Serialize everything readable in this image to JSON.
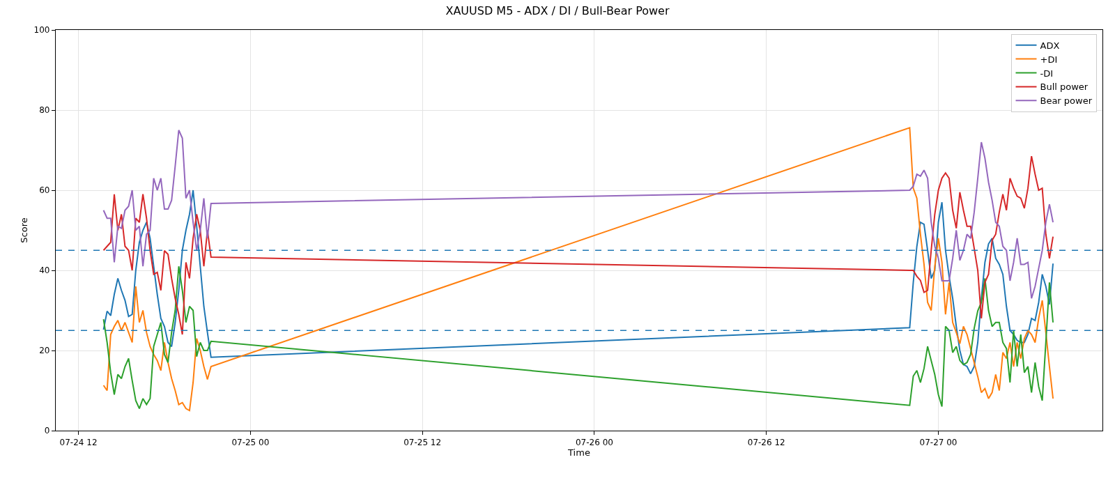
{
  "chart_data": {
    "type": "line",
    "title": "XAUUSD M5 - ADX / DI / Bull-Bear Power",
    "xlabel": "Time",
    "ylabel": "Score",
    "x": [
      "--07-24T13:45",
      "--07-24T14:00",
      "--07-24T14:15",
      "--07-24T14:30",
      "--07-24T14:45",
      "--07-24T15:00",
      "--07-24T15:15",
      "--07-24T15:30",
      "--07-24T15:45",
      "--07-24T16:00",
      "--07-24T16:15",
      "--07-24T16:30",
      "--07-24T16:45",
      "--07-24T17:00",
      "--07-24T17:15",
      "--07-24T17:30",
      "--07-24T17:45",
      "--07-24T18:00",
      "--07-24T18:15",
      "--07-24T18:30",
      "--07-24T18:45",
      "--07-24T19:00",
      "--07-24T19:15",
      "--07-24T19:30",
      "--07-24T19:45",
      "--07-24T20:00",
      "--07-24T20:15",
      "--07-24T20:30",
      "--07-24T20:45",
      "--07-24T21:00",
      "--07-24T21:15",
      "--07-26T22:00",
      "--07-26T22:15",
      "--07-26T22:30",
      "--07-26T22:45",
      "--07-26T23:00",
      "--07-26T23:15",
      "--07-26T23:30",
      "--07-26T23:45",
      "--07-27T00:00",
      "--07-27T00:15",
      "--07-27T00:30",
      "--07-27T00:45",
      "--07-27T01:00",
      "--07-27T01:15",
      "--07-27T01:30",
      "--07-27T01:45",
      "--07-27T02:00",
      "--07-27T02:15",
      "--07-27T02:30",
      "--07-27T02:45",
      "--07-27T03:00",
      "--07-27T03:15",
      "--07-27T03:30",
      "--07-27T03:45",
      "--07-27T04:00",
      "--07-27T04:15",
      "--07-27T04:30",
      "--07-27T04:45",
      "--07-27T05:00",
      "--07-27T05:15",
      "--07-27T05:30",
      "--07-27T05:45",
      "--07-27T06:00",
      "--07-27T06:15",
      "--07-27T06:30",
      "--07-27T06:45",
      "--07-27T07:00",
      "--07-27T07:15",
      "--07-27T07:30",
      "--07-27T07:45",
      "--07-27T08:00"
    ],
    "series": [
      {
        "name": "ADX",
        "color": "#1f77b4",
        "values": [
          25.2,
          29.8,
          28.7,
          34,
          38,
          35,
          32.5,
          28.5,
          29,
          40,
          47,
          50,
          52,
          48,
          41,
          34,
          28,
          26,
          22,
          21,
          27,
          35,
          45,
          50,
          54,
          60,
          51,
          41,
          31,
          24.5,
          18.3,
          25.7,
          37,
          46,
          52,
          51.5,
          45,
          38,
          40,
          52,
          57,
          45,
          38.5,
          33,
          26,
          20,
          16.5,
          16,
          14.2,
          16,
          22,
          33,
          42,
          46.6,
          48,
          43,
          41.5,
          39,
          31,
          25,
          24,
          22.5,
          22,
          22,
          24,
          28,
          27.5,
          32,
          39,
          36,
          31.5,
          41.7
        ]
      },
      {
        "name": "+DI",
        "color": "#ff7f0e",
        "values": [
          11.3,
          10,
          24,
          26,
          27.5,
          25,
          27,
          24.5,
          22,
          36,
          27,
          30,
          24.5,
          21,
          19,
          17.5,
          15,
          22,
          17,
          13,
          10,
          6.5,
          7,
          5.5,
          5,
          12,
          23,
          20,
          16,
          12.8,
          16,
          75.6,
          60.5,
          58,
          49,
          41.5,
          32,
          30,
          41,
          48,
          42,
          29,
          37,
          27,
          24.5,
          21.7,
          26,
          24,
          20.5,
          17,
          13.5,
          9.5,
          10.5,
          8,
          9.5,
          14,
          10,
          19.5,
          18,
          22,
          16,
          22,
          18,
          23,
          25,
          24,
          22,
          28,
          32.5,
          24.5,
          16,
          8
        ]
      },
      {
        "name": "-DI",
        "color": "#2ca02c",
        "values": [
          27.8,
          22,
          14.5,
          9,
          14,
          13,
          16,
          18,
          12.5,
          7.5,
          5.5,
          8,
          6.5,
          8,
          21,
          24,
          27,
          19,
          17,
          24.5,
          30,
          41,
          35,
          27,
          31,
          30,
          18.5,
          22,
          20,
          20,
          22.3,
          6.3,
          13.6,
          15,
          12,
          15.5,
          21,
          17.5,
          14,
          9,
          6,
          26,
          25,
          19.5,
          21,
          17.5,
          16.5,
          17,
          19,
          25.5,
          29.9,
          32,
          38,
          30,
          26,
          27,
          27,
          22,
          20.5,
          12,
          25,
          16,
          24,
          14.5,
          16,
          9.5,
          17,
          11,
          7.5,
          22,
          37,
          27
        ]
      },
      {
        "name": "Bull power",
        "color": "#d62728",
        "values": [
          45,
          46,
          47,
          59,
          50,
          54,
          46,
          45,
          40,
          53,
          52,
          59,
          53,
          45,
          39,
          39.5,
          35,
          44.9,
          44,
          38,
          33,
          29,
          24,
          42,
          38,
          48,
          54,
          50,
          41,
          50,
          43.3,
          40,
          40,
          38.5,
          37.5,
          34.5,
          35,
          45,
          54,
          60,
          63,
          64.3,
          63,
          55,
          50.5,
          59.5,
          55,
          51,
          51,
          45.5,
          40,
          28,
          37,
          39,
          47.5,
          49,
          54.5,
          59,
          55,
          63,
          60.5,
          58.5,
          58,
          55.5,
          60.5,
          68.5,
          64,
          60,
          60.5,
          49,
          43,
          48.4
        ]
      },
      {
        "name": "Bear power",
        "color": "#9467bd",
        "values": [
          55,
          53,
          53,
          42,
          51,
          50.5,
          55,
          56,
          60,
          50,
          51,
          41,
          49,
          50,
          63,
          60,
          63,
          55.3,
          55.3,
          57.5,
          66,
          75,
          73,
          58,
          60,
          52,
          45,
          50,
          58,
          48,
          56.7,
          60,
          61,
          64,
          63.5,
          65,
          63,
          52,
          46,
          43,
          37.4,
          37.4,
          37.4,
          43,
          50,
          42.5,
          45,
          49,
          48,
          54.5,
          63,
          72,
          68,
          62,
          57.5,
          52,
          51,
          46,
          45,
          37.4,
          42,
          48,
          41.5,
          41.5,
          42,
          33,
          36,
          40.5,
          45,
          52,
          56.5,
          52
        ]
      }
    ],
    "xlim": [
      "--07-24T10:25",
      "--07-27T11:27"
    ],
    "xticks": [
      {
        "value": "--07-24T12:00",
        "label": "07-24 12"
      },
      {
        "value": "--07-25T00:00",
        "label": "07-25 00"
      },
      {
        "value": "--07-25T12:00",
        "label": "07-25 12"
      },
      {
        "value": "--07-26T00:00",
        "label": "07-26 00"
      },
      {
        "value": "--07-26T12:00",
        "label": "07-26 12"
      },
      {
        "value": "--07-27T00:00",
        "label": "07-27 00"
      }
    ],
    "ylim": [
      0,
      100
    ],
    "yticks": [
      0,
      20,
      40,
      60,
      80,
      100
    ],
    "ref_lines": [
      {
        "axis": "y",
        "value": 45,
        "color": "#1f77b4",
        "line_style": "dashed"
      },
      {
        "axis": "y",
        "value": 25,
        "color": "#1f77b4",
        "line_style": "dashed"
      }
    ],
    "grid": true,
    "legend": "top right",
    "marker": "none",
    "line_style": "solid"
  }
}
